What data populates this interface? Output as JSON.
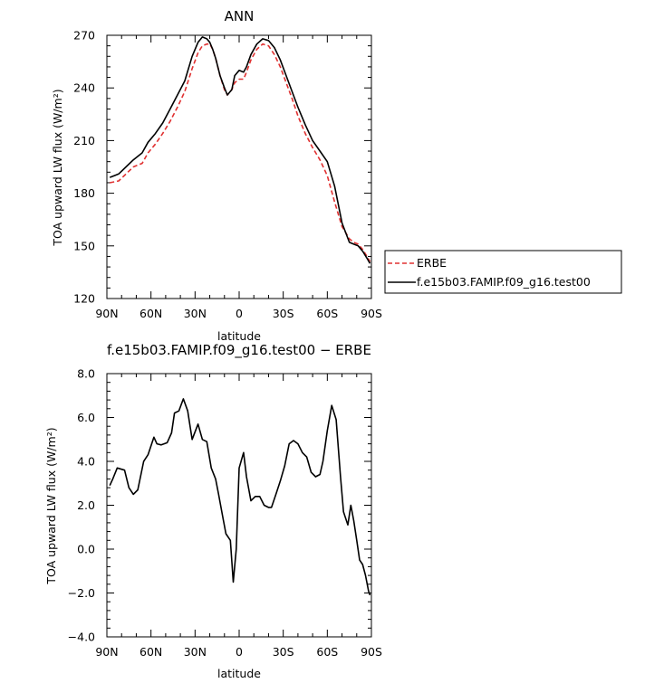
{
  "chart_data": [
    {
      "type": "line",
      "title": "ANN",
      "xlabel": "latitude",
      "ylabel": "TOA upward LW flux (W/m²)",
      "xlim": [
        -90,
        90
      ],
      "ylim": [
        120,
        270
      ],
      "xticks": [
        -90,
        -60,
        -30,
        0,
        30,
        60,
        90
      ],
      "xtick_labels": [
        "90N",
        "60N",
        "30N",
        "0",
        "30S",
        "60S",
        "90S"
      ],
      "yticks": [
        120,
        150,
        180,
        210,
        240,
        270
      ],
      "ytick_labels": [
        "120",
        "150",
        "180",
        "210",
        "240",
        "270"
      ],
      "legend": "right, outside",
      "series": [
        {
          "name": "ERBE",
          "color": "#e03030",
          "dash": "dashed",
          "x": [
            -88,
            -82,
            -77,
            -72,
            -66,
            -62,
            -57,
            -52,
            -47,
            -42,
            -37,
            -32,
            -28,
            -25,
            -22,
            -20,
            -18,
            -16,
            -13,
            -10,
            -8,
            -5,
            -3,
            0,
            3,
            5,
            8,
            12,
            16,
            20,
            24,
            28,
            32,
            36,
            40,
            45,
            50,
            55,
            60,
            65,
            70,
            75,
            78,
            81,
            84,
            87,
            89
          ],
          "y": [
            186,
            187,
            191,
            195,
            197,
            203,
            208,
            214,
            221,
            229,
            238,
            251,
            260,
            264,
            265,
            265,
            262,
            257,
            247,
            239,
            236,
            239,
            243,
            245,
            245,
            249,
            256,
            262,
            265,
            264,
            259,
            252,
            243,
            234,
            224,
            214,
            206,
            199,
            190,
            175,
            161,
            154,
            152,
            151,
            148,
            144,
            141
          ]
        },
        {
          "name": "f.e15b03.FAMIP.f09_g16.test00",
          "color": "#000000",
          "dash": "solid",
          "x": [
            -88,
            -82,
            -77,
            -72,
            -66,
            -62,
            -57,
            -52,
            -47,
            -42,
            -37,
            -32,
            -28,
            -25,
            -22,
            -20,
            -18,
            -16,
            -13,
            -10,
            -8,
            -5,
            -3,
            0,
            3,
            5,
            8,
            12,
            16,
            20,
            24,
            28,
            32,
            36,
            40,
            45,
            50,
            55,
            60,
            65,
            70,
            75,
            78,
            81,
            84,
            87,
            89
          ],
          "y": [
            189,
            191,
            195,
            199,
            203,
            209,
            214,
            220,
            228,
            236,
            244,
            258,
            266,
            269,
            268,
            266,
            262,
            257,
            247,
            240,
            236,
            239,
            247,
            250,
            249,
            252,
            259,
            265,
            268,
            267,
            263,
            256,
            247,
            238,
            229,
            219,
            210,
            204,
            198,
            184,
            163,
            152,
            151,
            150,
            147,
            143,
            140
          ]
        }
      ]
    },
    {
      "type": "line",
      "title": "f.e15b03.FAMIP.f09_g16.test00 − ERBE",
      "xlabel": "latitude",
      "ylabel": "TOA upward LW flux (W/m²)",
      "xlim": [
        -90,
        90
      ],
      "ylim": [
        -4,
        8
      ],
      "xticks": [
        -90,
        -60,
        -30,
        0,
        30,
        60,
        90
      ],
      "xtick_labels": [
        "90N",
        "60N",
        "30N",
        "0",
        "30S",
        "60S",
        "90S"
      ],
      "yticks": [
        -4,
        -2,
        0,
        2,
        4,
        6,
        8
      ],
      "ytick_labels": [
        "−4.0",
        "−2.0",
        "0.0",
        "2.0",
        "4.0",
        "6.0",
        "8.0"
      ],
      "series": [
        {
          "color": "#000000",
          "dash": "solid",
          "x": [
            -88,
            -86,
            -83,
            -78,
            -75,
            -72,
            -69,
            -65,
            -62,
            -58,
            -56,
            -53,
            -49,
            -46,
            -44,
            -41,
            -38,
            -35,
            -32,
            -28,
            -25,
            -22,
            -19,
            -16,
            -14,
            -11,
            -9,
            -6,
            -4,
            -2,
            0,
            3,
            5,
            8,
            11,
            14,
            17,
            20,
            22,
            25,
            28,
            31,
            34,
            37,
            40,
            43,
            46,
            49,
            52,
            55,
            57,
            60,
            63,
            66,
            69,
            71,
            74,
            76,
            78,
            80,
            82,
            84,
            86,
            88,
            89
          ],
          "y": [
            2.9,
            3.2,
            3.7,
            3.6,
            2.8,
            2.5,
            2.7,
            4.0,
            4.3,
            5.1,
            4.8,
            4.75,
            4.85,
            5.3,
            6.2,
            6.3,
            6.85,
            6.3,
            5.0,
            5.7,
            5.0,
            4.9,
            3.7,
            3.2,
            2.5,
            1.4,
            0.7,
            0.4,
            -1.5,
            0.0,
            3.7,
            4.4,
            3.3,
            2.2,
            2.4,
            2.4,
            2.0,
            1.9,
            1.9,
            2.5,
            3.1,
            3.8,
            4.8,
            4.95,
            4.8,
            4.4,
            4.2,
            3.5,
            3.3,
            3.4,
            4.0,
            5.4,
            6.55,
            5.9,
            3.3,
            1.7,
            1.1,
            2.0,
            1.3,
            0.4,
            -0.5,
            -0.7,
            -1.2,
            -1.9,
            -2.1
          ]
        }
      ]
    }
  ]
}
